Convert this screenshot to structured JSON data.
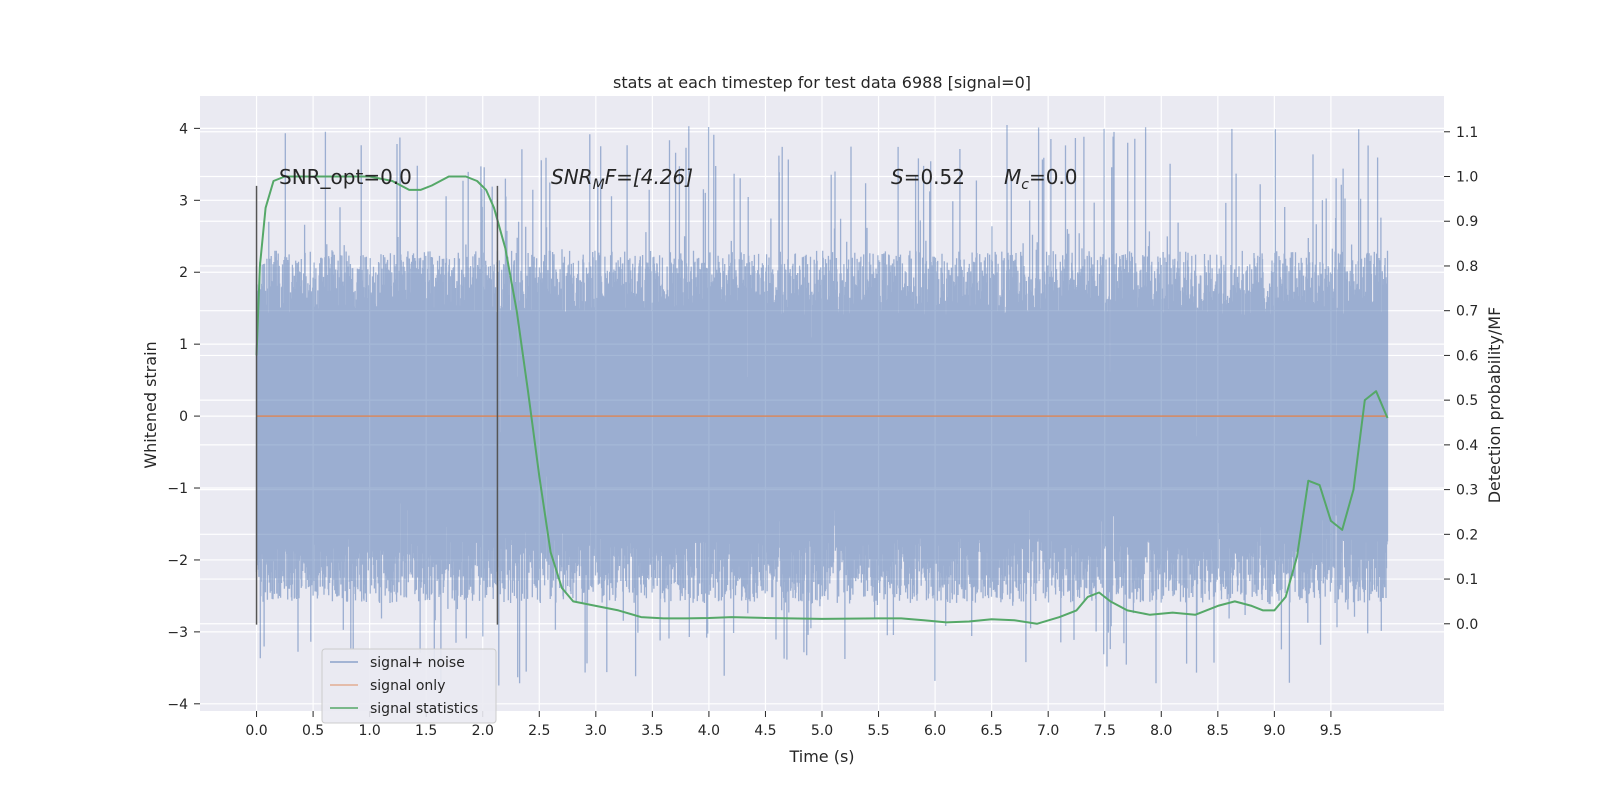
{
  "chart_data": {
    "type": "line",
    "title": "stats at each timestep for test data 6988 [signal=0]",
    "xlabel": "Time (s)",
    "ylabel_left": "Whitened strain",
    "ylabel_right": "Detection probability/MF",
    "xlim": [
      -0.5,
      10.5
    ],
    "ylim_left": [
      -4.1,
      4.45
    ],
    "ylim_right": [
      -0.195,
      1.18
    ],
    "x_ticks": [
      "0.0",
      "0.5",
      "1.0",
      "1.5",
      "2.0",
      "2.5",
      "3.0",
      "3.5",
      "4.0",
      "4.5",
      "5.0",
      "5.5",
      "6.0",
      "6.5",
      "7.0",
      "7.5",
      "8.0",
      "8.5",
      "9.0",
      "9.5"
    ],
    "y_left_ticks": [
      "4",
      "3",
      "2",
      "1",
      "0",
      "−1",
      "−2",
      "−3",
      "−4"
    ],
    "y_right_ticks": [
      "1.1",
      "1.0",
      "0.9",
      "0.8",
      "0.7",
      "0.6",
      "0.5",
      "0.4",
      "0.3",
      "0.2",
      "0.1",
      "0.0"
    ],
    "grid": true,
    "legend_position": "lower-left",
    "colors": {
      "background": "#eaeaf2",
      "grid": "#ffffff",
      "signal_noise": "#4c72b0",
      "signal_only": "#dd8452",
      "signal_statistics": "#55a868",
      "vlines": "#555555"
    },
    "annotations": {
      "snr_opt": "SNR_opt=0.0",
      "snr_mf_base": "SNR",
      "snr_mf_sub": "M",
      "snr_mf_rest": "F=[4.26]",
      "s_label": "S",
      "s_value": "=0.52",
      "mc_base": "M",
      "mc_sub": "c",
      "mc_value": "=0.0"
    },
    "vertical_lines": [
      {
        "x": 0.0,
        "ymin": -2.9,
        "ymax": 3.2
      },
      {
        "x": 2.13,
        "ymin": -2.9,
        "ymax": 3.2
      }
    ],
    "series": [
      {
        "name": "signal+ noise",
        "axis": "left",
        "style": "noise-band",
        "x_range": [
          0.0,
          10.0
        ],
        "core_band": [
          -1.7,
          1.4
        ],
        "spike_range": [
          -3.75,
          4.05
        ]
      },
      {
        "name": "signal only",
        "axis": "left",
        "x": [
          0.0,
          10.0
        ],
        "y": [
          0.0,
          0.0
        ]
      },
      {
        "name": "signal statistics",
        "axis": "right",
        "x": [
          0.0,
          0.03,
          0.08,
          0.15,
          0.25,
          0.4,
          0.6,
          0.8,
          1.0,
          1.2,
          1.35,
          1.45,
          1.55,
          1.7,
          1.85,
          1.95,
          2.03,
          2.1,
          2.2,
          2.3,
          2.4,
          2.5,
          2.6,
          2.7,
          2.8,
          3.0,
          3.2,
          3.4,
          3.6,
          3.8,
          4.0,
          4.2,
          4.5,
          5.0,
          5.5,
          5.7,
          5.9,
          6.1,
          6.3,
          6.5,
          6.7,
          6.9,
          7.1,
          7.25,
          7.35,
          7.45,
          7.55,
          7.7,
          7.9,
          8.1,
          8.3,
          8.5,
          8.65,
          8.8,
          8.9,
          9.0,
          9.1,
          9.2,
          9.3,
          9.4,
          9.5,
          9.6,
          9.7,
          9.8,
          9.9,
          10.0
        ],
        "y": [
          0.6,
          0.8,
          0.93,
          0.99,
          1.0,
          1.0,
          1.0,
          1.0,
          1.0,
          0.99,
          0.97,
          0.97,
          0.98,
          1.0,
          1.0,
          0.99,
          0.97,
          0.93,
          0.84,
          0.7,
          0.52,
          0.33,
          0.16,
          0.08,
          0.05,
          0.04,
          0.03,
          0.015,
          0.012,
          0.012,
          0.013,
          0.015,
          0.013,
          0.011,
          0.012,
          0.012,
          0.008,
          0.003,
          0.005,
          0.01,
          0.008,
          0.0,
          0.015,
          0.03,
          0.06,
          0.07,
          0.05,
          0.03,
          0.02,
          0.025,
          0.02,
          0.04,
          0.05,
          0.04,
          0.03,
          0.03,
          0.06,
          0.15,
          0.32,
          0.31,
          0.23,
          0.21,
          0.3,
          0.5,
          0.52,
          0.46
        ]
      }
    ]
  }
}
